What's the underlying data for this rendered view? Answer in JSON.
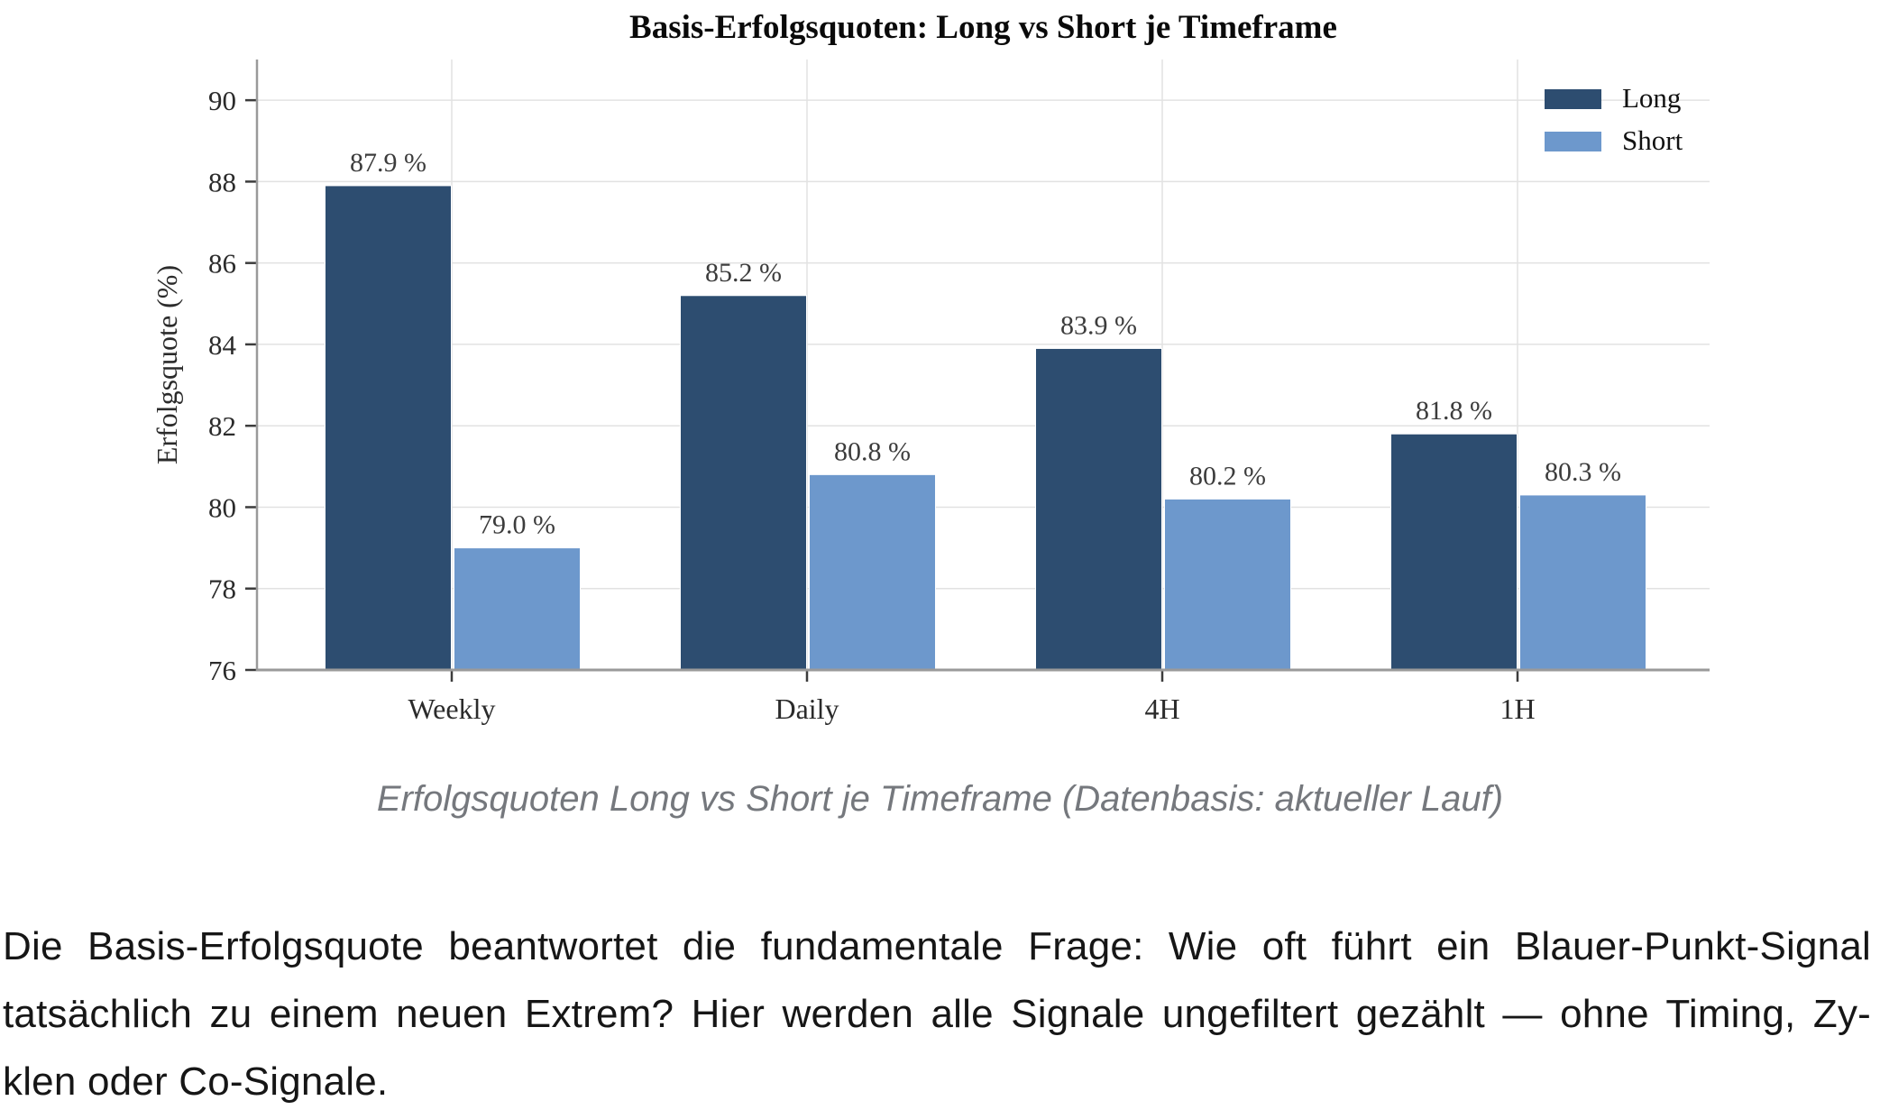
{
  "chart_data": {
    "type": "bar",
    "title": "Basis-Erfolgsquoten: Long vs Short je Timeframe",
    "ylabel": "Erfolgsquote (%)",
    "xlabel": "",
    "categories": [
      "Weekly",
      "Daily",
      "4H",
      "1H"
    ],
    "series": [
      {
        "name": "Long",
        "color": "#2d4d70",
        "values": [
          87.9,
          85.2,
          83.9,
          81.8
        ],
        "labels": [
          "87.9 %",
          "85.2 %",
          "83.9 %",
          "81.8 %"
        ]
      },
      {
        "name": "Short",
        "color": "#6d98cc",
        "values": [
          79.0,
          80.8,
          80.2,
          80.3
        ],
        "labels": [
          "79.0 %",
          "80.8 %",
          "80.2 %",
          "80.3 %"
        ]
      }
    ],
    "ylim": [
      76,
      91
    ],
    "yticks": [
      76,
      78,
      80,
      82,
      84,
      86,
      88,
      90
    ],
    "grid": "both",
    "legend_position": "top-right",
    "legend_entries": [
      "Long",
      "Short"
    ]
  },
  "caption": "Erfolgsquoten Long vs Short je Timeframe (Datenbasis: aktueller Lauf)",
  "body": {
    "lines": [
      "Die Basis-Erfolgsquote beantwortet die fundamentale Frage: Wie oft führt ein Blauer-Punkt-Signal",
      "tatsächlich zu einem neuen Extrem? Hier werden alle Signale ungefiltert gezählt — ohne Timing, Zy-",
      "klen oder Co-Signale."
    ]
  },
  "colors": {
    "long": "#2d4d70",
    "short": "#6d98cc",
    "grid": "#e2e2e2",
    "spine": "#9a9a9a",
    "tick": "#3c3c3c",
    "tick_label": "#2b2b2b",
    "value_label": "#3c3c3c",
    "title": "#0a0a0a",
    "caption": "#75787d",
    "body": "#161616",
    "background": "#ffffff"
  }
}
